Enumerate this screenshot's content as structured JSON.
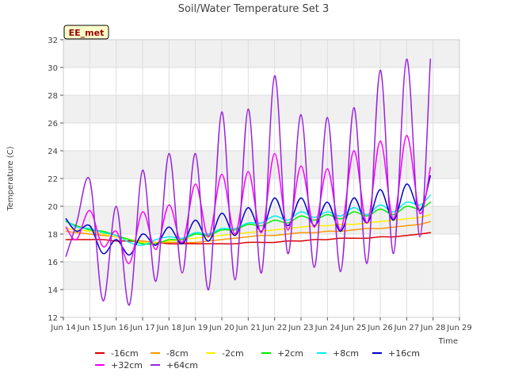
{
  "chart_data": {
    "type": "line",
    "title": "Soil/Water Temperature Set 3",
    "xlabel": "Time",
    "ylabel": "Temperature (C)",
    "site_label": "EE_met",
    "ylim": [
      12,
      32
    ],
    "yticks": [
      12,
      14,
      16,
      18,
      20,
      22,
      24,
      26,
      28,
      30,
      32
    ],
    "xlim": [
      0,
      15
    ],
    "xticks": [
      {
        "v": 0,
        "label": "Jun 14"
      },
      {
        "v": 1,
        "label": "Jun 15"
      },
      {
        "v": 2,
        "label": "Jun 16"
      },
      {
        "v": 3,
        "label": "Jun 17"
      },
      {
        "v": 4,
        "label": "Jun 18"
      },
      {
        "v": 5,
        "label": "Jun 19"
      },
      {
        "v": 6,
        "label": "Jun 20"
      },
      {
        "v": 7,
        "label": "Jun 21"
      },
      {
        "v": 8,
        "label": "Jun 22"
      },
      {
        "v": 9,
        "label": "Jun 23"
      },
      {
        "v": 10,
        "label": "Jun 24"
      },
      {
        "v": 11,
        "label": "Jun 25"
      },
      {
        "v": 12,
        "label": "Jun 26"
      },
      {
        "v": 13,
        "label": "Jun 27"
      },
      {
        "v": 14,
        "label": "Jun 28"
      },
      {
        "v": 15,
        "label": "Jun 29"
      }
    ],
    "grid": true,
    "background_bands": true,
    "legend_position": "bottom",
    "x_days": [
      0.1,
      0.5,
      1.0,
      1.5,
      2.0,
      2.5,
      3.0,
      3.5,
      4.0,
      4.5,
      5.0,
      5.5,
      6.0,
      6.5,
      7.0,
      7.5,
      8.0,
      8.5,
      9.0,
      9.5,
      10.0,
      10.5,
      11.0,
      11.5,
      12.0,
      12.5,
      13.0,
      13.5,
      13.9
    ],
    "series": [
      {
        "name": "-16cm",
        "color": "#dd0000",
        "y": [
          17.6,
          17.6,
          17.6,
          17.6,
          17.5,
          17.5,
          17.4,
          17.4,
          17.3,
          17.3,
          17.3,
          17.3,
          17.3,
          17.3,
          17.4,
          17.4,
          17.4,
          17.5,
          17.5,
          17.6,
          17.6,
          17.7,
          17.7,
          17.7,
          17.8,
          17.8,
          17.9,
          18.0,
          18.1
        ]
      },
      {
        "name": "-8cm",
        "color": "#ff9900",
        "y": [
          18.2,
          18.1,
          18.0,
          17.9,
          17.8,
          17.6,
          17.5,
          17.4,
          17.4,
          17.4,
          17.4,
          17.5,
          17.6,
          17.7,
          17.8,
          17.9,
          17.9,
          18.0,
          18.1,
          18.1,
          18.2,
          18.2,
          18.3,
          18.4,
          18.4,
          18.5,
          18.6,
          18.7,
          18.9
        ]
      },
      {
        "name": "-2cm",
        "color": "#ffee00",
        "y": [
          18.4,
          18.3,
          18.2,
          18.0,
          17.8,
          17.6,
          17.4,
          17.4,
          17.5,
          17.6,
          17.7,
          17.8,
          17.9,
          18.0,
          18.1,
          18.2,
          18.3,
          18.4,
          18.5,
          18.6,
          18.6,
          18.7,
          18.7,
          18.8,
          18.9,
          19.0,
          19.1,
          19.2,
          19.4
        ]
      },
      {
        "name": "+2cm",
        "color": "#00ee00",
        "y": [
          18.9,
          18.6,
          18.3,
          18.2,
          17.9,
          17.6,
          17.3,
          17.3,
          17.6,
          17.6,
          18.0,
          17.9,
          18.3,
          18.3,
          18.7,
          18.6,
          19.0,
          18.8,
          19.3,
          19.0,
          19.4,
          19.1,
          19.6,
          19.3,
          19.8,
          19.4,
          20.0,
          19.8,
          20.3
        ]
      },
      {
        "name": "+8cm",
        "color": "#00eeee",
        "y": [
          19.0,
          18.5,
          18.4,
          18.1,
          17.9,
          17.4,
          17.2,
          17.6,
          17.8,
          17.7,
          18.1,
          18.0,
          18.4,
          18.4,
          18.8,
          18.8,
          19.3,
          19.0,
          19.6,
          19.2,
          19.6,
          19.3,
          19.9,
          19.4,
          20.1,
          19.6,
          20.3,
          20.1,
          20.8
        ]
      },
      {
        "name": "+16cm",
        "color": "#0000cc",
        "y": [
          19.1,
          18.2,
          18.6,
          16.6,
          17.6,
          16.5,
          18.0,
          17.2,
          18.5,
          17.3,
          19.0,
          17.5,
          19.5,
          17.9,
          19.9,
          18.2,
          20.6,
          18.6,
          20.6,
          18.6,
          20.3,
          18.2,
          20.6,
          18.8,
          21.2,
          19.0,
          21.6,
          19.7,
          22.2
        ]
      },
      {
        "name": "+32cm",
        "color": "#ff00ff",
        "y": [
          18.5,
          17.6,
          19.7,
          17.1,
          18.2,
          15.9,
          19.6,
          16.9,
          20.1,
          17.4,
          21.6,
          17.8,
          22.3,
          18.0,
          22.5,
          18.1,
          23.8,
          18.3,
          22.9,
          18.5,
          22.7,
          18.3,
          24.0,
          18.8,
          24.7,
          19.1,
          25.1,
          19.5,
          22.8
        ]
      },
      {
        "name": "+64cm",
        "color": "#9922dd",
        "y": [
          16.4,
          18.8,
          21.9,
          13.2,
          20.0,
          12.9,
          22.6,
          14.6,
          23.8,
          15.2,
          23.8,
          14.0,
          26.8,
          14.7,
          27.0,
          15.2,
          29.4,
          16.6,
          26.6,
          15.6,
          26.4,
          15.3,
          27.1,
          15.9,
          29.8,
          16.6,
          30.6,
          17.8,
          30.6
        ]
      }
    ]
  }
}
